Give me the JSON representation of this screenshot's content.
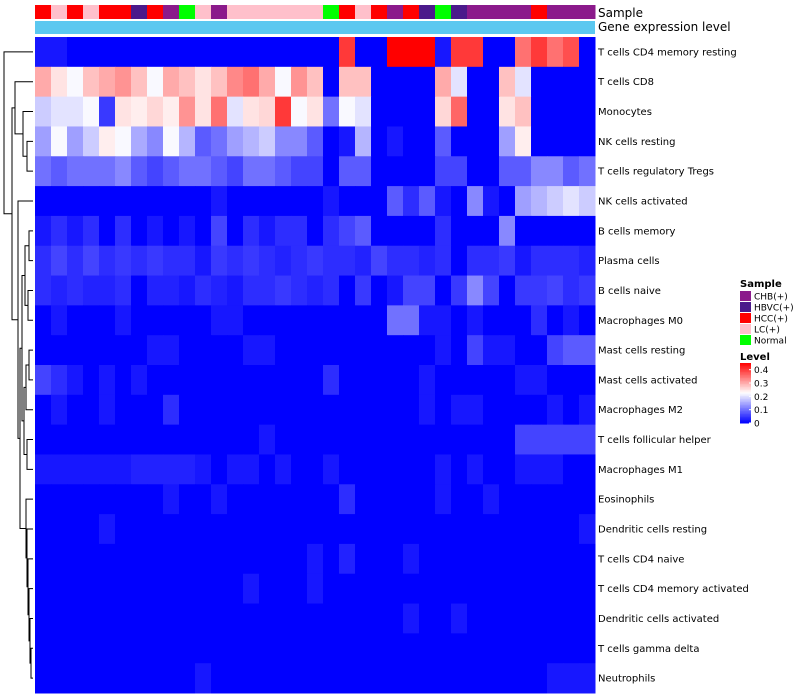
{
  "chart_data": {
    "type": "heatmap",
    "title": "",
    "annotation_titles": {
      "sample": "Sample",
      "expression": "Gene expression level"
    },
    "rows": [
      "T cells CD4 memory resting",
      "T cells CD8",
      "Monocytes",
      "NK cells resting",
      "T cells regulatory  Tregs",
      "NK cells activated",
      "B cells memory",
      "Plasma cells",
      "B cells naive",
      "Macrophages M0",
      "Mast cells resting",
      "Mast cells activated",
      "Macrophages M2",
      "T cells follicular helper",
      "Macrophages M1",
      "Eosinophils",
      "Dendritic cells resting",
      "T cells CD4 naive",
      "T cells CD4 memory activated",
      "Dendritic cells activated",
      "T cells gamma delta",
      "Neutrophils"
    ],
    "column_samples": [
      "HCC(+)",
      "LC(+)",
      "HCC(+)",
      "LC(+)",
      "HCC(+)",
      "HCC(+)",
      "HBVC(+)",
      "HCC(+)",
      "CHB(+)",
      "Normal",
      "LC(+)",
      "CHB(+)",
      "LC(+)",
      "LC(+)",
      "LC(+)",
      "LC(+)",
      "LC(+)",
      "LC(+)",
      "Normal",
      "HCC(+)",
      "LC(+)",
      "HCC(+)",
      "CHB(+)",
      "HCC(+)",
      "HBVC(+)",
      "Normal",
      "HBVC(+)",
      "CHB(+)",
      "CHB(+)",
      "CHB(+)",
      "CHB(+)",
      "HCC(+)",
      "CHB(+)",
      "CHB(+)",
      "CHB(+)"
    ],
    "values": [
      [
        0.02,
        0.02,
        0.0,
        0.0,
        0.0,
        0.0,
        0.0,
        0.0,
        0.0,
        0.0,
        0.0,
        0.0,
        0.0,
        0.0,
        0.0,
        0.0,
        0.0,
        0.0,
        0.0,
        0.4,
        0.0,
        0.0,
        0.45,
        0.45,
        0.45,
        0.02,
        0.4,
        0.4,
        0.0,
        0.0,
        0.35,
        0.4,
        0.35,
        0.38,
        0.0
      ],
      [
        0.3,
        0.25,
        0.22,
        0.28,
        0.3,
        0.32,
        0.28,
        0.22,
        0.3,
        0.28,
        0.25,
        0.28,
        0.33,
        0.35,
        0.3,
        0.22,
        0.32,
        0.28,
        0.0,
        0.28,
        0.28,
        0.0,
        0.0,
        0.0,
        0.0,
        0.3,
        0.2,
        0.0,
        0.0,
        0.28,
        0.2,
        0.0,
        0.0,
        0.0,
        0.0
      ],
      [
        0.18,
        0.2,
        0.2,
        0.22,
        0.05,
        0.25,
        0.24,
        0.26,
        0.24,
        0.32,
        0.25,
        0.35,
        0.2,
        0.25,
        0.26,
        0.4,
        0.22,
        0.25,
        0.1,
        0.22,
        0.2,
        0.0,
        0.0,
        0.0,
        0.0,
        0.26,
        0.36,
        0.0,
        0.0,
        0.25,
        0.28,
        0.0,
        0.0,
        0.0,
        0.0
      ],
      [
        0.14,
        0.22,
        0.14,
        0.18,
        0.24,
        0.22,
        0.15,
        0.12,
        0.22,
        0.16,
        0.08,
        0.1,
        0.14,
        0.16,
        0.18,
        0.12,
        0.12,
        0.08,
        0.0,
        0.02,
        0.16,
        0.0,
        0.02,
        0.0,
        0.0,
        0.08,
        0.0,
        0.0,
        0.0,
        0.14,
        0.24,
        0.0,
        0.0,
        0.0,
        0.0
      ],
      [
        0.1,
        0.08,
        0.1,
        0.1,
        0.1,
        0.12,
        0.08,
        0.06,
        0.08,
        0.1,
        0.1,
        0.08,
        0.06,
        0.1,
        0.1,
        0.08,
        0.06,
        0.06,
        0.0,
        0.08,
        0.08,
        0.0,
        0.0,
        0.0,
        0.0,
        0.06,
        0.06,
        0.0,
        0.0,
        0.08,
        0.08,
        0.12,
        0.12,
        0.08,
        0.1
      ],
      [
        0.0,
        0.0,
        0.0,
        0.0,
        0.0,
        0.0,
        0.0,
        0.0,
        0.0,
        0.0,
        0.0,
        0.02,
        0.0,
        0.0,
        0.0,
        0.0,
        0.0,
        0.0,
        0.02,
        0.0,
        0.0,
        0.0,
        0.08,
        0.04,
        0.08,
        0.02,
        0.0,
        0.12,
        0.02,
        0.0,
        0.14,
        0.16,
        0.18,
        0.2,
        0.18
      ],
      [
        0.02,
        0.04,
        0.02,
        0.04,
        0.0,
        0.04,
        0.0,
        0.02,
        0.0,
        0.02,
        0.0,
        0.06,
        0.0,
        0.04,
        0.02,
        0.04,
        0.04,
        0.0,
        0.04,
        0.06,
        0.08,
        0.0,
        0.0,
        0.0,
        0.0,
        0.04,
        0.0,
        0.0,
        0.0,
        0.12,
        0.0,
        0.0,
        0.0,
        0.0,
        0.0
      ],
      [
        0.04,
        0.06,
        0.04,
        0.06,
        0.04,
        0.05,
        0.04,
        0.05,
        0.04,
        0.04,
        0.02,
        0.05,
        0.04,
        0.05,
        0.04,
        0.03,
        0.04,
        0.05,
        0.04,
        0.04,
        0.03,
        0.06,
        0.04,
        0.04,
        0.03,
        0.04,
        0.0,
        0.04,
        0.04,
        0.05,
        0.02,
        0.04,
        0.04,
        0.04,
        0.03
      ],
      [
        0.04,
        0.03,
        0.04,
        0.03,
        0.03,
        0.04,
        0.0,
        0.03,
        0.03,
        0.02,
        0.04,
        0.03,
        0.02,
        0.04,
        0.04,
        0.05,
        0.04,
        0.03,
        0.04,
        0.0,
        0.05,
        0.0,
        0.02,
        0.06,
        0.06,
        0.0,
        0.05,
        0.12,
        0.06,
        0.0,
        0.05,
        0.05,
        0.06,
        0.04,
        0.05
      ],
      [
        0.0,
        0.02,
        0.0,
        0.0,
        0.0,
        0.02,
        0.0,
        0.0,
        0.0,
        0.0,
        0.0,
        0.02,
        0.02,
        0.0,
        0.0,
        0.0,
        0.0,
        0.0,
        0.0,
        0.0,
        0.0,
        0.0,
        0.1,
        0.1,
        0.02,
        0.02,
        0.0,
        0.02,
        0.0,
        0.0,
        0.0,
        0.04,
        0.0,
        0.02,
        0.0
      ],
      [
        0.0,
        0.0,
        0.0,
        0.0,
        0.0,
        0.0,
        0.0,
        0.02,
        0.02,
        0.0,
        0.0,
        0.0,
        0.0,
        0.02,
        0.02,
        0.0,
        0.0,
        0.0,
        0.0,
        0.0,
        0.0,
        0.0,
        0.0,
        0.0,
        0.0,
        0.02,
        0.0,
        0.06,
        0.02,
        0.02,
        0.0,
        0.0,
        0.06,
        0.08,
        0.08
      ],
      [
        0.06,
        0.04,
        0.02,
        0.0,
        0.02,
        0.0,
        0.02,
        0.0,
        0.0,
        0.0,
        0.0,
        0.0,
        0.0,
        0.0,
        0.0,
        0.0,
        0.0,
        0.0,
        0.04,
        0.0,
        0.0,
        0.0,
        0.0,
        0.0,
        0.02,
        0.0,
        0.0,
        0.0,
        0.0,
        0.0,
        0.02,
        0.02,
        0.0,
        0.0,
        0.0
      ],
      [
        0.0,
        0.02,
        0.0,
        0.0,
        0.02,
        0.0,
        0.0,
        0.0,
        0.04,
        0.0,
        0.0,
        0.0,
        0.0,
        0.0,
        0.0,
        0.0,
        0.0,
        0.0,
        0.0,
        0.0,
        0.0,
        0.0,
        0.0,
        0.0,
        0.02,
        0.0,
        0.02,
        0.02,
        0.0,
        0.0,
        0.0,
        0.0,
        0.02,
        0.0,
        0.02
      ],
      [
        0.0,
        0.0,
        0.0,
        0.0,
        0.0,
        0.0,
        0.0,
        0.0,
        0.0,
        0.0,
        0.0,
        0.0,
        0.0,
        0.0,
        0.02,
        0.0,
        0.0,
        0.0,
        0.0,
        0.0,
        0.0,
        0.0,
        0.0,
        0.0,
        0.0,
        0.0,
        0.0,
        0.0,
        0.0,
        0.0,
        0.06,
        0.06,
        0.06,
        0.06,
        0.06
      ],
      [
        0.02,
        0.02,
        0.02,
        0.02,
        0.02,
        0.02,
        0.03,
        0.03,
        0.03,
        0.03,
        0.02,
        0.0,
        0.02,
        0.02,
        0.0,
        0.02,
        0.0,
        0.0,
        0.02,
        0.0,
        0.0,
        0.0,
        0.0,
        0.0,
        0.0,
        0.02,
        0.0,
        0.02,
        0.0,
        0.0,
        0.02,
        0.02,
        0.02,
        0.0,
        0.0
      ],
      [
        0.0,
        0.0,
        0.0,
        0.0,
        0.0,
        0.0,
        0.0,
        0.0,
        0.02,
        0.0,
        0.0,
        0.02,
        0.0,
        0.0,
        0.0,
        0.0,
        0.0,
        0.0,
        0.0,
        0.04,
        0.0,
        0.0,
        0.0,
        0.0,
        0.0,
        0.02,
        0.0,
        0.0,
        0.02,
        0.0,
        0.0,
        0.0,
        0.0,
        0.0,
        0.0
      ],
      [
        0.0,
        0.0,
        0.0,
        0.0,
        0.02,
        0.0,
        0.0,
        0.0,
        0.0,
        0.0,
        0.0,
        0.0,
        0.0,
        0.0,
        0.0,
        0.0,
        0.0,
        0.0,
        0.0,
        0.0,
        0.0,
        0.0,
        0.0,
        0.0,
        0.0,
        0.0,
        0.0,
        0.0,
        0.0,
        0.0,
        0.0,
        0.0,
        0.0,
        0.0,
        0.02
      ],
      [
        0.0,
        0.0,
        0.0,
        0.0,
        0.0,
        0.0,
        0.0,
        0.0,
        0.0,
        0.0,
        0.0,
        0.0,
        0.0,
        0.0,
        0.0,
        0.0,
        0.0,
        0.02,
        0.0,
        0.03,
        0.0,
        0.0,
        0.0,
        0.02,
        0.0,
        0.0,
        0.0,
        0.0,
        0.0,
        0.0,
        0.0,
        0.0,
        0.0,
        0.0,
        0.0
      ],
      [
        0.0,
        0.0,
        0.0,
        0.0,
        0.0,
        0.0,
        0.0,
        0.0,
        0.0,
        0.0,
        0.0,
        0.0,
        0.0,
        0.02,
        0.0,
        0.0,
        0.0,
        0.02,
        0.0,
        0.0,
        0.0,
        0.0,
        0.0,
        0.0,
        0.0,
        0.0,
        0.0,
        0.0,
        0.0,
        0.0,
        0.0,
        0.0,
        0.0,
        0.0,
        0.0
      ],
      [
        0.0,
        0.0,
        0.0,
        0.0,
        0.0,
        0.0,
        0.0,
        0.0,
        0.0,
        0.0,
        0.0,
        0.0,
        0.0,
        0.0,
        0.0,
        0.0,
        0.0,
        0.0,
        0.0,
        0.0,
        0.0,
        0.0,
        0.0,
        0.02,
        0.0,
        0.0,
        0.02,
        0.0,
        0.0,
        0.0,
        0.0,
        0.0,
        0.0,
        0.0,
        0.0
      ],
      [
        0.0,
        0.0,
        0.0,
        0.0,
        0.0,
        0.0,
        0.0,
        0.0,
        0.0,
        0.0,
        0.0,
        0.0,
        0.0,
        0.0,
        0.0,
        0.0,
        0.0,
        0.0,
        0.0,
        0.0,
        0.0,
        0.0,
        0.0,
        0.0,
        0.0,
        0.0,
        0.0,
        0.0,
        0.0,
        0.0,
        0.0,
        0.0,
        0.0,
        0.0,
        0.0
      ],
      [
        0.0,
        0.0,
        0.0,
        0.0,
        0.0,
        0.0,
        0.0,
        0.0,
        0.0,
        0.0,
        0.02,
        0.0,
        0.0,
        0.0,
        0.0,
        0.0,
        0.0,
        0.0,
        0.0,
        0.0,
        0.0,
        0.0,
        0.0,
        0.0,
        0.0,
        0.0,
        0.0,
        0.0,
        0.0,
        0.0,
        0.0,
        0.0,
        0.02,
        0.02,
        0.02
      ]
    ],
    "legend": {
      "sample_title": "Sample",
      "sample_entries": [
        {
          "label": "CHB(+)",
          "color": "#8b1a8b"
        },
        {
          "label": "HBVC(+)",
          "color": "#4b1a8b"
        },
        {
          "label": "HCC(+)",
          "color": "#ff0000"
        },
        {
          "label": "LC(+)",
          "color": "#ffc0cb"
        },
        {
          "label": "Normal",
          "color": "#00ff00"
        }
      ],
      "level_title": "Level",
      "level_ticks": [
        0.4,
        0.3,
        0.2,
        0.1,
        0
      ],
      "level_range": [
        0,
        0.45
      ]
    },
    "colors": {
      "low": "#0000ff",
      "mid": "#ffffff",
      "high": "#ff0000",
      "expression_bar": "#5bc8f0",
      "sample_bar_bg": "#ffc0cb",
      "dendrogram": "#000000"
    }
  }
}
